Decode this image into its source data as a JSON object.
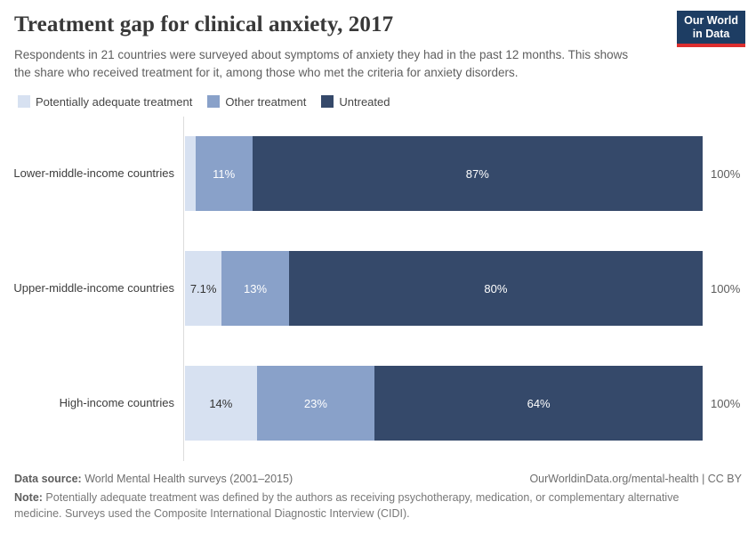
{
  "header": {
    "title": "Treatment gap for clinical anxiety, 2017",
    "subtitle": "Respondents in 21 countries were surveyed about symptoms of anxiety they had in the past 12 months. This shows the share who received treatment for it, among those who met the criteria for anxiety disorders.",
    "logo_line1": "Our World",
    "logo_line2": "in Data",
    "logo_bg": "#1d3d63",
    "logo_accent": "#dc2e2e"
  },
  "legend": [
    {
      "label": "Potentially adequate treatment",
      "color": "#d7e1f1"
    },
    {
      "label": "Other treatment",
      "color": "#89a1c9"
    },
    {
      "label": "Untreated",
      "color": "#35496a"
    }
  ],
  "chart_data": {
    "type": "bar",
    "orientation": "horizontal-stacked",
    "categories": [
      "Lower-middle-income countries",
      "Upper-middle-income countries",
      "High-income countries"
    ],
    "series": [
      {
        "name": "Potentially adequate treatment",
        "color": "#d7e1f1",
        "text_color": "#333333",
        "values": [
          2,
          7.1,
          14
        ],
        "labels": [
          "",
          "7.1%",
          "14%"
        ]
      },
      {
        "name": "Other treatment",
        "color": "#89a1c9",
        "text_color": "#ffffff",
        "values": [
          11,
          13,
          23
        ],
        "labels": [
          "11%",
          "13%",
          "23%"
        ]
      },
      {
        "name": "Untreated",
        "color": "#35496a",
        "text_color": "#ffffff",
        "values": [
          87,
          80,
          64
        ],
        "labels": [
          "87%",
          "80%",
          "64%"
        ]
      }
    ],
    "total_label": "100%",
    "xlim": [
      0,
      100
    ],
    "grid": false,
    "legend_position": "top"
  },
  "footer": {
    "datasource_label": "Data source:",
    "datasource_text": " World Mental Health surveys (2001–2015)",
    "link": "OurWorldinData.org/mental-health | CC BY",
    "note_label": "Note:",
    "note_text": " Potentially adequate treatment was defined by the authors as receiving psychotherapy, medication, or complementary alternative medicine. Surveys used the Composite International Diagnostic Interview (CIDI)."
  }
}
